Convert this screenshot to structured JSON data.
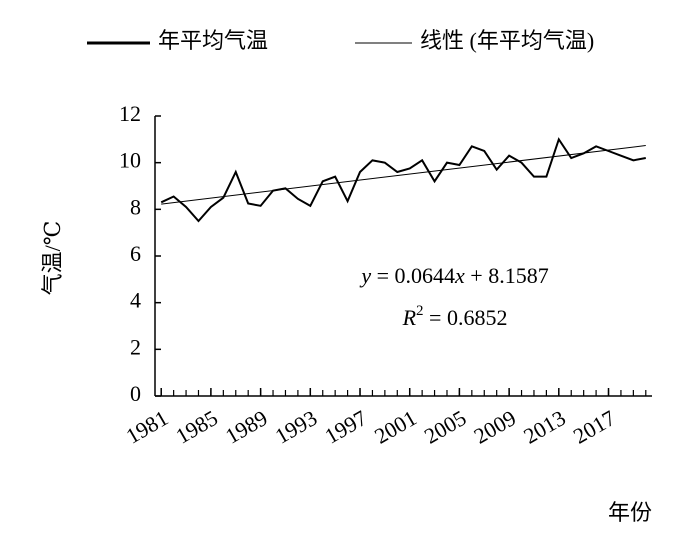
{
  "chart_data": {
    "type": "line",
    "x_label": "年份",
    "y_label": "气温/℃",
    "x": [
      1981,
      1982,
      1983,
      1984,
      1985,
      1986,
      1987,
      1988,
      1989,
      1990,
      1991,
      1992,
      1993,
      1994,
      1995,
      1996,
      1997,
      1998,
      1999,
      2000,
      2001,
      2002,
      2003,
      2004,
      2005,
      2006,
      2007,
      2008,
      2009,
      2010,
      2011,
      2012,
      2013,
      2014,
      2015,
      2016,
      2017,
      2018,
      2019,
      2020
    ],
    "series": [
      {
        "name": "年平均气温",
        "color": "#000000",
        "values": [
          8.3,
          8.55,
          8.1,
          7.5,
          8.1,
          8.5,
          9.6,
          8.25,
          8.15,
          8.8,
          8.9,
          8.45,
          8.15,
          9.2,
          9.4,
          8.35,
          9.6,
          10.1,
          10.0,
          9.6,
          9.75,
          10.1,
          9.2,
          10.0,
          9.9,
          10.7,
          10.5,
          9.7,
          10.3,
          10.0,
          9.4,
          9.4,
          11.0,
          10.2,
          10.4,
          10.7,
          10.5,
          10.3,
          10.1,
          10.2
        ]
      }
    ],
    "trendline": {
      "name": "线性 (年平均气温)",
      "color": "#000000",
      "slope": 0.0644,
      "intercept": 8.1587,
      "r2": 0.6852
    },
    "annotations": [
      [
        {
          "text": "y",
          "italic": true
        },
        {
          "text": " = "
        },
        {
          "path": "trendline.slope"
        },
        {
          "text": "x",
          "italic": true
        },
        {
          "text": " + "
        },
        {
          "path": "trendline.intercept"
        }
      ],
      [
        {
          "text": "R",
          "italic": true
        },
        {
          "text": "2",
          "sup": true
        },
        {
          "text": " = "
        },
        {
          "path": "trendline.r2"
        }
      ]
    ],
    "xlim": [
      1980.5,
      2020.5
    ],
    "xticks": [
      1981,
      1985,
      1989,
      1993,
      1997,
      2001,
      2005,
      2009,
      2013,
      2017
    ],
    "ylim": [
      0,
      12
    ],
    "yticks": [
      0,
      2,
      4,
      6,
      8,
      10,
      12
    ],
    "grid": false,
    "legend": "top"
  }
}
